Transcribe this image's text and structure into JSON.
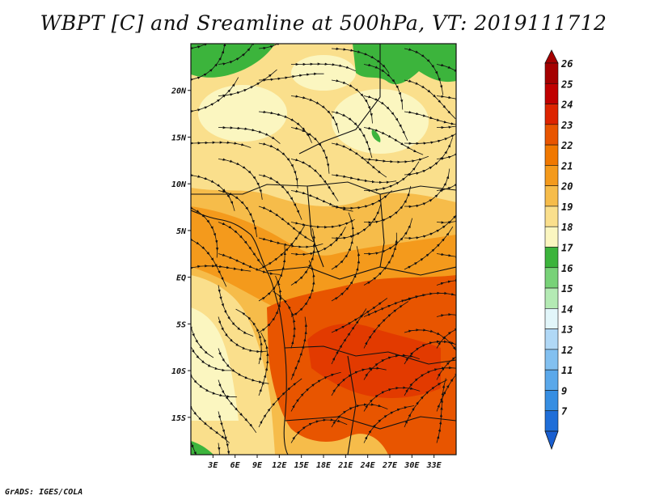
{
  "title": "WBPT [C] and Sreamline at 500hPa, VT: 2019111712",
  "credit": "GrADS: IGES/COLA",
  "map": {
    "lon_range": [
      0,
      36
    ],
    "lat_range": [
      -19,
      25
    ],
    "lat_ticks": [
      {
        "value": 20,
        "label": "20N"
      },
      {
        "value": 15,
        "label": "15N"
      },
      {
        "value": 10,
        "label": "10N"
      },
      {
        "value": 5,
        "label": "5N"
      },
      {
        "value": 0,
        "label": "EQ"
      },
      {
        "value": -5,
        "label": "5S"
      },
      {
        "value": -10,
        "label": "10S"
      },
      {
        "value": -15,
        "label": "15S"
      }
    ],
    "lon_ticks": [
      {
        "value": 3,
        "label": "3E"
      },
      {
        "value": 6,
        "label": "6E"
      },
      {
        "value": 9,
        "label": "9E"
      },
      {
        "value": 12,
        "label": "12E"
      },
      {
        "value": 15,
        "label": "15E"
      },
      {
        "value": 18,
        "label": "18E"
      },
      {
        "value": 21,
        "label": "21E"
      },
      {
        "value": 24,
        "label": "24E"
      },
      {
        "value": 27,
        "label": "27E"
      },
      {
        "value": 30,
        "label": "30E"
      },
      {
        "value": 33,
        "label": "33E"
      }
    ]
  },
  "colorbar": {
    "levels": [
      {
        "label": "26",
        "color": "#a50000"
      },
      {
        "label": "25",
        "color": "#c00000"
      },
      {
        "label": "24",
        "color": "#dd2400"
      },
      {
        "label": "23",
        "color": "#e85500"
      },
      {
        "label": "22",
        "color": "#f07800"
      },
      {
        "label": "21",
        "color": "#f49a1c"
      },
      {
        "label": "20",
        "color": "#f6bc4a"
      },
      {
        "label": "19",
        "color": "#fadf8c"
      },
      {
        "label": "18",
        "color": "#fbf6c0"
      },
      {
        "label": "17",
        "color": "#3cb43c"
      },
      {
        "label": "16",
        "color": "#78d278"
      },
      {
        "label": "15",
        "color": "#b4eab4"
      },
      {
        "label": "14",
        "color": "#e2f6fa"
      },
      {
        "label": "13",
        "color": "#b0d8f6"
      },
      {
        "label": "12",
        "color": "#82c0f0"
      },
      {
        "label": "11",
        "color": "#5aa8ea"
      },
      {
        "label": "9",
        "color": "#368ee2"
      },
      {
        "label": "7",
        "color": "#1f6ed8"
      }
    ],
    "bottom_color": "#1a5fd0"
  }
}
